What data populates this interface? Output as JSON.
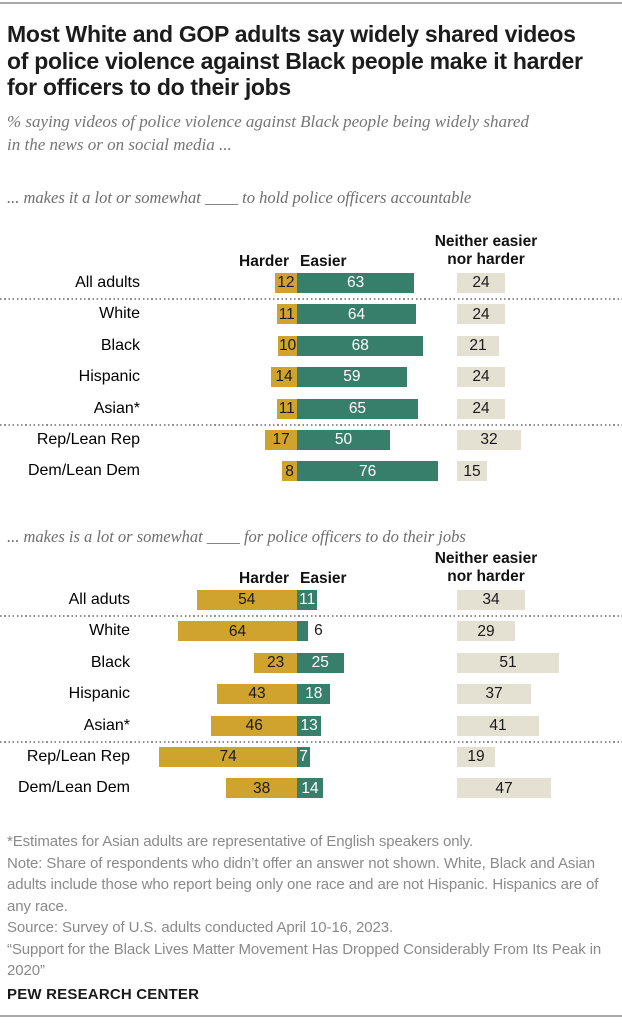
{
  "page": {
    "title": "Most White and GOP adults say widely shared videos\nof police violence against Black people make it harder\nfor officers to do their jobs",
    "subtitle": "% saying videos of police violence against Black people being widely shared\nin the news or on social media ...",
    "brand": "PEW RESEARCH CENTER"
  },
  "colors": {
    "harder": "#d0a32e",
    "easier": "#377e6b",
    "neither": "#e4e1d3",
    "value_on_easier": "#ffffff",
    "value_on_harder": "#1a1a1a"
  },
  "notes": {
    "asterisk": "*Estimates for Asian adults are representative of English speakers only.",
    "note": "Note: Share of respondents who didn’t offer an answer not shown. White, Black and Asian\nadults include those who report being only one race and are not Hispanic. Hispanics are of\nany race.",
    "source": "Source: Survey of U.S. adults conducted April 10-16, 2023.",
    "quote": "“Support for the Black Lives Matter Movement Has Dropped Considerably From Its Peak in\n2020”"
  },
  "chart_data": [
    {
      "type": "bar",
      "title": "... makes it a lot or somewhat ____ to hold police officers accountable",
      "column_headers": {
        "harder": "Harder",
        "easier": "Easier",
        "neither": "Neither easier\nnor harder"
      },
      "categories": [
        "All adults",
        "White",
        "Black",
        "Hispanic",
        "Asian*",
        "Rep/Lean Rep",
        "Dem/Lean Dem"
      ],
      "series": [
        {
          "name": "Harder",
          "values": [
            12,
            11,
            10,
            14,
            11,
            17,
            8
          ]
        },
        {
          "name": "Easier",
          "values": [
            63,
            64,
            68,
            59,
            65,
            50,
            76
          ]
        },
        {
          "name": "Neither easier nor harder",
          "values": [
            24,
            24,
            21,
            24,
            24,
            32,
            15
          ]
        }
      ],
      "separator_after_rows": [
        0,
        4
      ],
      "legend_position": "top",
      "grid": false
    },
    {
      "type": "bar",
      "title": "... makes is a lot or somewhat ____ for police officers to do their jobs",
      "column_headers": {
        "harder": "Harder",
        "easier": "Easier",
        "neither": "Neither easier\nnor harder"
      },
      "categories": [
        "All aduts",
        "White",
        "Black",
        "Hispanic",
        "Asian*",
        "Rep/Lean Rep",
        "Dem/Lean Dem"
      ],
      "series": [
        {
          "name": "Harder",
          "values": [
            54,
            64,
            23,
            43,
            46,
            74,
            38
          ]
        },
        {
          "name": "Easier",
          "values": [
            11,
            6,
            25,
            18,
            13,
            7,
            14
          ]
        },
        {
          "name": "Neither easier nor harder",
          "values": [
            34,
            29,
            51,
            37,
            41,
            19,
            47
          ]
        }
      ],
      "separator_after_rows": [
        0,
        4
      ],
      "legend_position": "top",
      "grid": false
    }
  ]
}
